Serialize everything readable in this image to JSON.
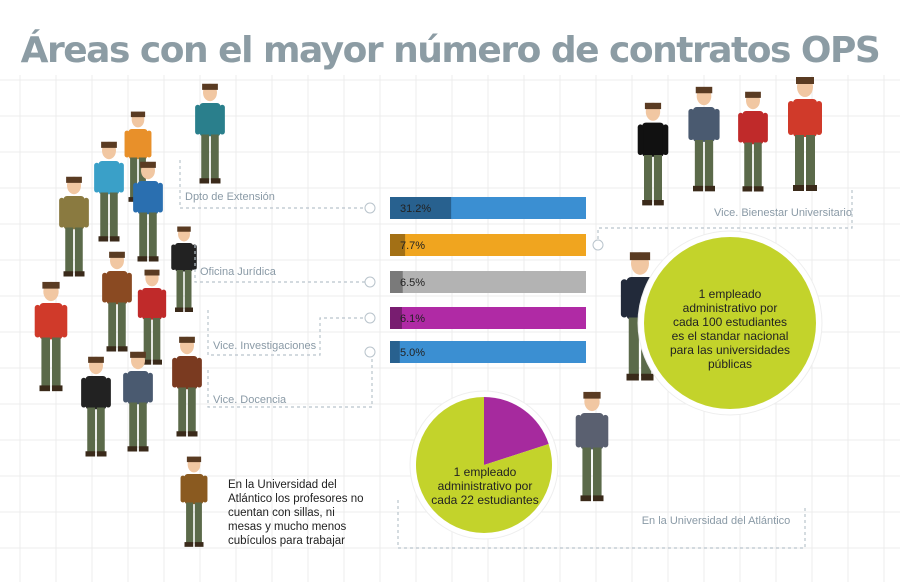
{
  "chart_data": [
    {
      "type": "bar",
      "title": "Áreas con el mayor número de contratos OPS",
      "categories": [
        "Dpto de Extensión",
        "Vice. Bienestar Universitario",
        "Oficina Jurídica",
        "Vice. Investigaciones",
        "Vice. Docencia"
      ],
      "values": [
        31.2,
        7.7,
        6.5,
        6.1,
        5.0
      ],
      "value_labels": [
        "31.2%",
        "7.7%",
        "6.5%",
        "6.1%",
        "5.0%"
      ],
      "colors": [
        "#3b8fd2",
        "#f0a51f",
        "#b3b3b3",
        "#b02aa5",
        "#3b8fd2"
      ],
      "xlim": [
        0,
        100
      ]
    },
    {
      "type": "pie",
      "values": [
        20,
        80
      ],
      "colors": [
        "#a62a9e",
        "#c3d32b"
      ],
      "label": "1 empleado administrativo por cada 22 estudiantes"
    }
  ],
  "annotations": [
    "1 empleado administrativo por cada 100 estudiantes es el standar nacional para las universidades públicas",
    "En la Universidad del Atlántico",
    "En la Universidad del Atlántico los profesores no cuentan  con sillas, ni mesas y mucho menos cubículos para trabajar"
  ]
}
